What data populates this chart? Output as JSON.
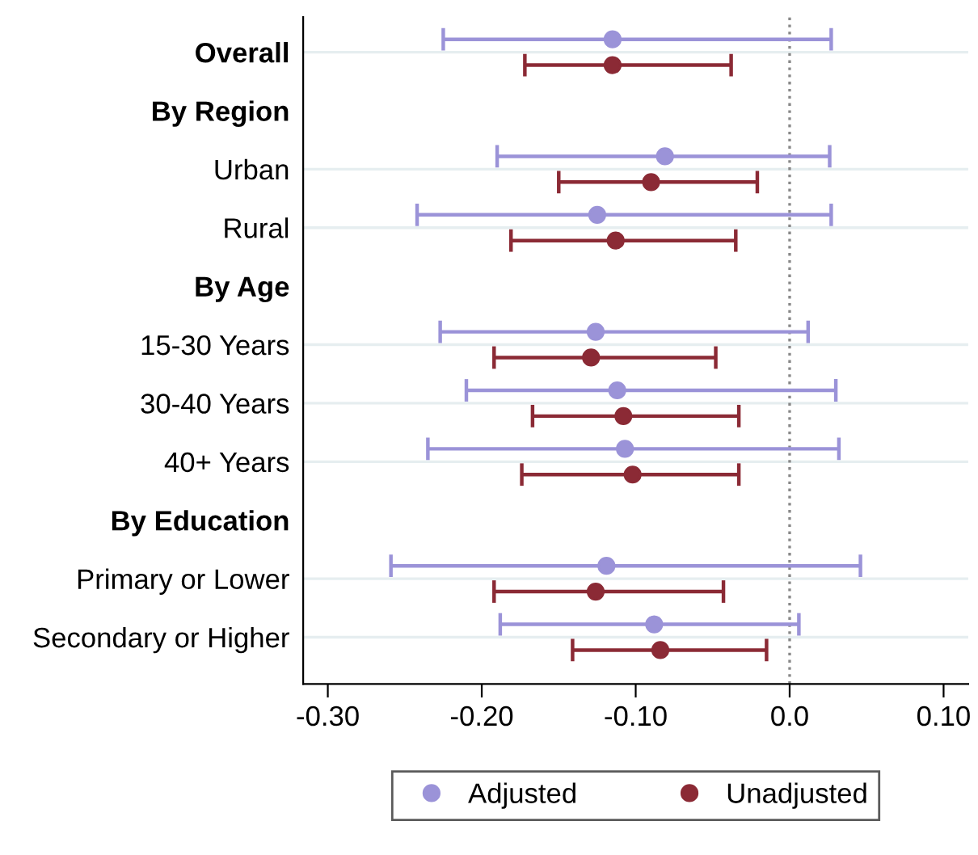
{
  "chart_data": {
    "type": "scatter",
    "orientation": "horizontal",
    "categories": [
      "Overall",
      "By Region",
      "Urban",
      "Rural",
      "By Age",
      "15-30 Years",
      "30-40 Years",
      "40+ Years",
      "By Education",
      "Primary or Lower",
      "Secondary or Higher"
    ],
    "series": [
      {
        "name": "Adjusted",
        "color": "#9b93d8",
        "values": [
          -0.115,
          null,
          -0.081,
          -0.125,
          null,
          -0.126,
          -0.112,
          -0.107,
          null,
          -0.119,
          -0.088
        ],
        "errors": [
          [
            -0.225,
            0.027
          ],
          null,
          [
            -0.19,
            0.026
          ],
          [
            -0.242,
            0.027
          ],
          null,
          [
            -0.227,
            0.012
          ],
          [
            -0.21,
            0.03
          ],
          [
            -0.235,
            0.032
          ],
          null,
          [
            -0.259,
            0.046
          ],
          [
            -0.188,
            0.006
          ]
        ]
      },
      {
        "name": "Unadjusted",
        "color": "#8b2a35",
        "values": [
          -0.115,
          null,
          -0.09,
          -0.113,
          null,
          -0.129,
          -0.108,
          -0.102,
          null,
          -0.126,
          -0.084
        ],
        "errors": [
          [
            -0.172,
            -0.038
          ],
          null,
          [
            -0.15,
            -0.021
          ],
          [
            -0.181,
            -0.035
          ],
          null,
          [
            -0.192,
            -0.048
          ],
          [
            -0.167,
            -0.033
          ],
          [
            -0.174,
            -0.033
          ],
          null,
          [
            -0.192,
            -0.043
          ],
          [
            -0.141,
            -0.015
          ]
        ]
      }
    ],
    "xlim": [
      -0.316,
      0.116
    ],
    "xticks": [
      {
        "value": -0.3,
        "label": "-0.30"
      },
      {
        "value": -0.2,
        "label": "-0.20"
      },
      {
        "value": -0.1,
        "label": "-0.10"
      },
      {
        "value": 0,
        "label": "0.0"
      },
      {
        "value": 0.1,
        "label": "0.10"
      }
    ],
    "ref_lines": [
      {
        "axis": "x",
        "value": 0,
        "label": null,
        "color": "#888888",
        "line_style": "dotted"
      }
    ],
    "grid": "y",
    "legend": "bottom",
    "marker": "circle"
  }
}
